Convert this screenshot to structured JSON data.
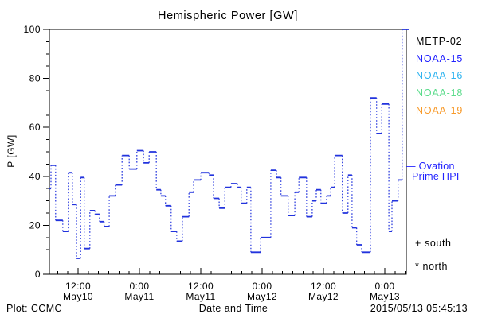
{
  "title": "Hemispheric Power [GW]",
  "legend": {
    "satellites": [
      {
        "label": "METP-02",
        "color": "#000000"
      },
      {
        "label": "NOAA-15",
        "color": "#2222ff"
      },
      {
        "label": "NOAA-16",
        "color": "#2fb4f0"
      },
      {
        "label": "NOAA-18",
        "color": "#5cdc8c"
      },
      {
        "label": "NOAA-19",
        "color": "#f89a2a"
      }
    ],
    "model": {
      "marker": "—",
      "line1": "Ovation",
      "line2": "Prime HPI",
      "color": "#2222ff"
    },
    "hemisphere_markers": [
      {
        "symbol": "+",
        "label": "south"
      },
      {
        "symbol": "*",
        "label": "north"
      }
    ]
  },
  "footer": {
    "left": "Plot: CCMC",
    "center": "Date and Time",
    "right": "2015/05/13 05:45:13"
  },
  "chart_data": {
    "type": "line",
    "subtype": "step",
    "title": "Hemispheric Power [GW]",
    "xlabel": "Date and Time",
    "ylabel": "P [GW]",
    "ylim": [
      0,
      100
    ],
    "y_major_ticks": [
      0,
      20,
      40,
      60,
      80,
      100
    ],
    "y_minor_interval": 5,
    "grid": false,
    "x_axis_unit": "hours since 2015-05-10 00:00",
    "x_domain": [
      6.3,
      76.7
    ],
    "x_minor_interval_hours": 2,
    "x_major_ticks": [
      {
        "t": 12,
        "time": "12:00",
        "date": "May10"
      },
      {
        "t": 24,
        "time": "0:00",
        "date": "May11"
      },
      {
        "t": 36,
        "time": "12:00",
        "date": "May11"
      },
      {
        "t": 48,
        "time": "0:00",
        "date": "May12"
      },
      {
        "t": 60,
        "time": "12:00",
        "date": "May12"
      },
      {
        "t": 72,
        "time": "0:00",
        "date": "May13"
      }
    ],
    "series": [
      {
        "name": "Ovation Prime HPI",
        "color": "#2233dd",
        "units": "GW",
        "t_end": 76.7,
        "steps": [
          [
            6.3,
            35
          ],
          [
            6.7,
            44.5
          ],
          [
            7.6,
            22
          ],
          [
            9.0,
            17.5
          ],
          [
            10.1,
            41.5
          ],
          [
            10.9,
            28.5
          ],
          [
            11.7,
            6.5
          ],
          [
            12.5,
            39.5
          ],
          [
            13.2,
            10.5
          ],
          [
            14.3,
            26
          ],
          [
            15.3,
            24.5
          ],
          [
            16.2,
            21.5
          ],
          [
            17.1,
            19.5
          ],
          [
            18.1,
            32
          ],
          [
            19.3,
            36.5
          ],
          [
            20.6,
            48.5
          ],
          [
            22.0,
            43
          ],
          [
            23.5,
            50.5
          ],
          [
            24.8,
            45.5
          ],
          [
            25.9,
            50
          ],
          [
            27.3,
            34.5
          ],
          [
            28.2,
            32
          ],
          [
            29.1,
            28
          ],
          [
            30.2,
            17.5
          ],
          [
            31.3,
            13.5
          ],
          [
            32.4,
            23.5
          ],
          [
            33.7,
            33.5
          ],
          [
            34.6,
            38.5
          ],
          [
            36.0,
            41.5
          ],
          [
            37.6,
            40.5
          ],
          [
            38.5,
            31
          ],
          [
            39.6,
            27
          ],
          [
            40.7,
            35.5
          ],
          [
            41.9,
            37
          ],
          [
            43.2,
            35.5
          ],
          [
            43.9,
            29
          ],
          [
            45.0,
            35.5
          ],
          [
            45.8,
            9
          ],
          [
            47.7,
            15
          ],
          [
            49.7,
            42.5
          ],
          [
            50.8,
            39.5
          ],
          [
            51.7,
            32
          ],
          [
            53.1,
            24
          ],
          [
            54.4,
            33.5
          ],
          [
            55.2,
            39.5
          ],
          [
            56.7,
            23.5
          ],
          [
            57.8,
            30
          ],
          [
            58.6,
            34.5
          ],
          [
            59.5,
            29
          ],
          [
            60.6,
            32
          ],
          [
            61.4,
            35.5
          ],
          [
            62.2,
            48.5
          ],
          [
            63.7,
            25
          ],
          [
            64.8,
            40.5
          ],
          [
            65.6,
            19
          ],
          [
            66.5,
            12
          ],
          [
            67.5,
            9
          ],
          [
            69.2,
            72
          ],
          [
            70.4,
            57.5
          ],
          [
            71.4,
            69.5
          ],
          [
            72.8,
            17.5
          ],
          [
            73.4,
            30
          ],
          [
            74.6,
            38.5
          ],
          [
            75.4,
            100
          ]
        ]
      }
    ]
  }
}
